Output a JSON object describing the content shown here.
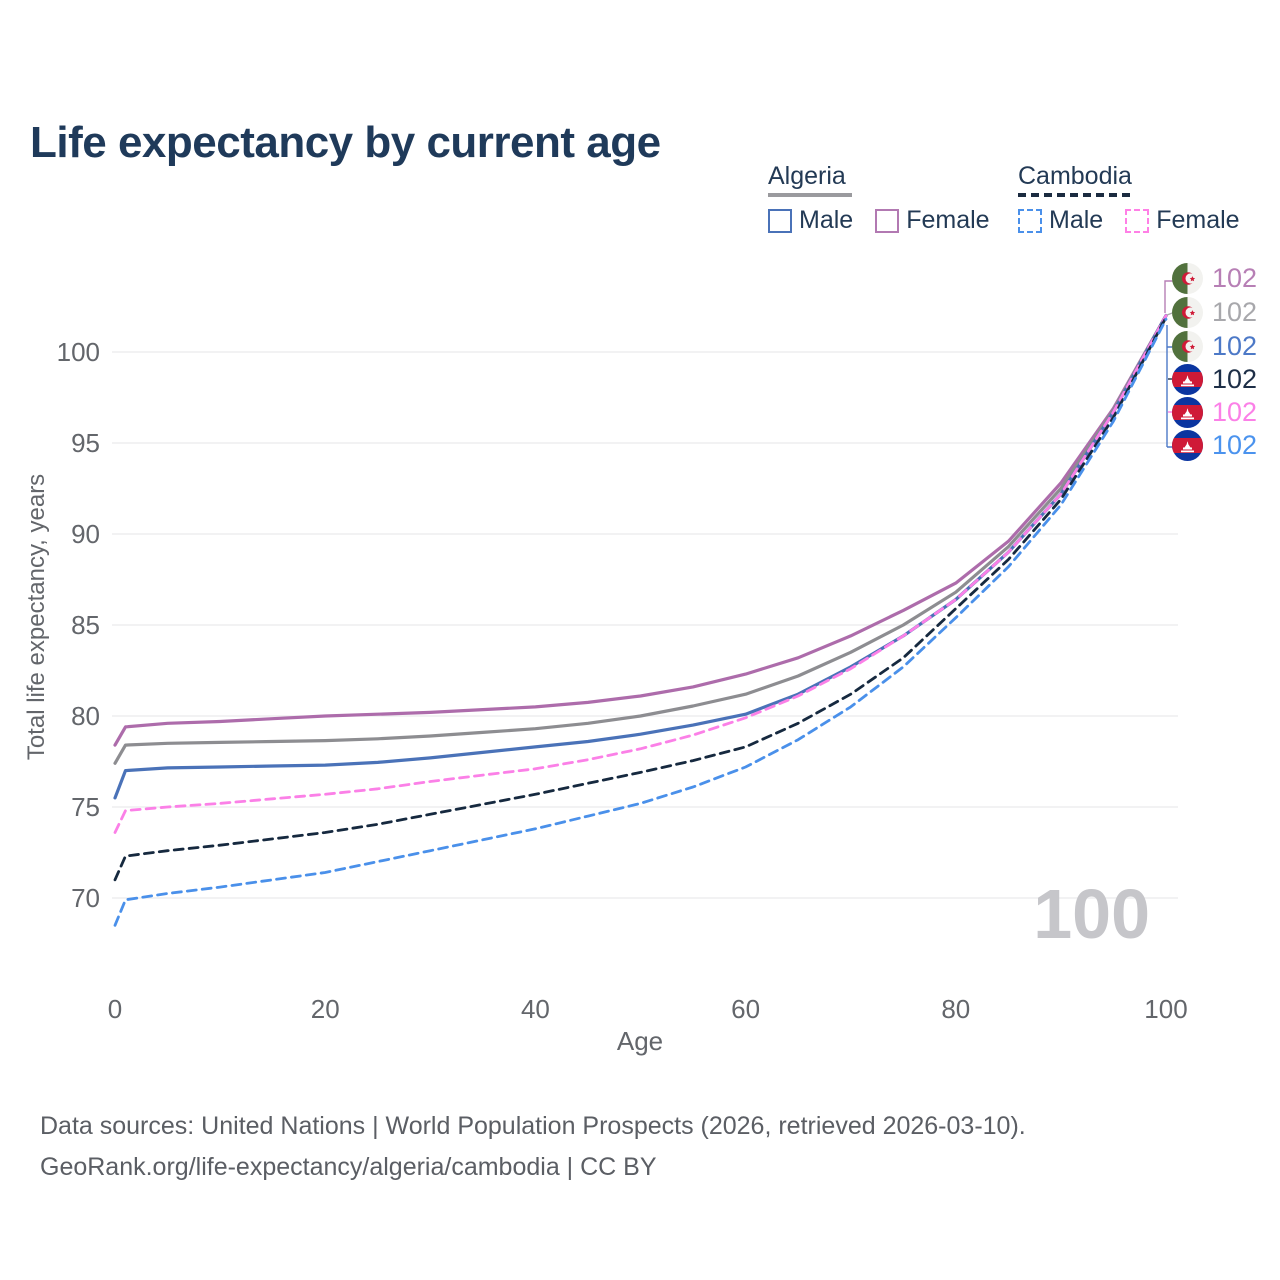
{
  "title": "Life expectancy by current age",
  "legend": {
    "groups": [
      {
        "country": "Algeria",
        "line_style": "solid",
        "underline_color": "#9a9a9e",
        "items": [
          {
            "label": "Male",
            "color": "#4a72b8",
            "dashed": false
          },
          {
            "label": "Female",
            "color": "#b279b2",
            "dashed": false
          }
        ]
      },
      {
        "country": "Cambodia",
        "line_style": "dashed",
        "underline_color": "#1b2b40",
        "items": [
          {
            "label": "Male",
            "color": "#4a90ea",
            "dashed": true
          },
          {
            "label": "Female",
            "color": "#ff80e6",
            "dashed": true
          }
        ]
      }
    ]
  },
  "end_labels": [
    {
      "flag": "algeria",
      "series": "Algeria Female",
      "value": "102",
      "color": "#b77fb5"
    },
    {
      "flag": "algeria",
      "series": "Algeria Both sexes",
      "value": "102",
      "color": "#a8a8ac"
    },
    {
      "flag": "algeria",
      "series": "Algeria Male",
      "value": "102",
      "color": "#4d79c7"
    },
    {
      "flag": "cambodia",
      "series": "Cambodia Both sexes",
      "value": "102",
      "color": "#1e2f47"
    },
    {
      "flag": "cambodia",
      "series": "Cambodia Female",
      "value": "102",
      "color": "#fb80e7"
    },
    {
      "flag": "cambodia",
      "series": "Cambodia Male",
      "value": "102",
      "color": "#4b93ee"
    }
  ],
  "watermark": "100",
  "footer": {
    "line1": "Data sources: United Nations | World Population Prospects (2026, retrieved 2026-03-10).",
    "line2": "GeoRank.org/life-expectancy/algeria/cambodia | CC BY"
  },
  "chart_data": {
    "type": "line",
    "title": "Life expectancy by current age",
    "xlabel": "Age",
    "ylabel": "Total life expectancy, years",
    "xlim": [
      0,
      100
    ],
    "ylim": [
      66.5,
      103.5
    ],
    "xticks": [
      0,
      20,
      40,
      60,
      80,
      100
    ],
    "yticks": [
      70,
      75,
      80,
      85,
      90,
      95,
      100
    ],
    "grid": "horizontal-only",
    "legend_position": "top-right",
    "x": [
      0,
      1,
      5,
      10,
      15,
      20,
      25,
      30,
      35,
      40,
      45,
      50,
      55,
      60,
      65,
      70,
      75,
      80,
      85,
      90,
      95,
      100
    ],
    "series": [
      {
        "name": "Algeria Female",
        "color": "#ad6cab",
        "dashed": false,
        "values": [
          78.4,
          79.4,
          79.6,
          79.7,
          79.85,
          80.0,
          80.1,
          80.2,
          80.35,
          80.5,
          80.75,
          81.1,
          81.6,
          82.3,
          83.2,
          84.4,
          85.8,
          87.3,
          89.6,
          92.8,
          96.9,
          102.0
        ]
      },
      {
        "name": "Algeria Both sexes",
        "color": "#8d8d91",
        "dashed": false,
        "values": [
          77.4,
          78.4,
          78.5,
          78.55,
          78.6,
          78.65,
          78.75,
          78.9,
          79.1,
          79.3,
          79.6,
          80.0,
          80.55,
          81.2,
          82.2,
          83.5,
          85.0,
          86.8,
          89.3,
          92.5,
          96.8,
          102.0
        ]
      },
      {
        "name": "Algeria Male",
        "color": "#4a72b8",
        "dashed": false,
        "values": [
          75.5,
          77.0,
          77.15,
          77.2,
          77.25,
          77.3,
          77.45,
          77.7,
          78.0,
          78.3,
          78.6,
          79.0,
          79.5,
          80.1,
          81.2,
          82.7,
          84.4,
          86.4,
          89.0,
          92.2,
          96.7,
          102.0
        ]
      },
      {
        "name": "Cambodia Female",
        "color": "#fb80e7",
        "dashed": true,
        "values": [
          73.6,
          74.8,
          75.0,
          75.2,
          75.45,
          75.7,
          76.0,
          76.4,
          76.75,
          77.1,
          77.6,
          78.2,
          78.95,
          79.9,
          81.1,
          82.6,
          84.4,
          86.4,
          89.0,
          92.2,
          96.7,
          102.0
        ]
      },
      {
        "name": "Cambodia Both sexes",
        "color": "#16293f",
        "dashed": true,
        "values": [
          71.0,
          72.3,
          72.6,
          72.9,
          73.25,
          73.6,
          74.05,
          74.6,
          75.15,
          75.7,
          76.3,
          76.9,
          77.55,
          78.3,
          79.6,
          81.2,
          83.2,
          85.9,
          88.6,
          91.9,
          96.4,
          101.9
        ]
      },
      {
        "name": "Cambodia Male",
        "color": "#4a90ea",
        "dashed": true,
        "values": [
          68.5,
          69.9,
          70.25,
          70.6,
          71.0,
          71.4,
          72.0,
          72.6,
          73.2,
          73.8,
          74.5,
          75.2,
          76.1,
          77.2,
          78.7,
          80.5,
          82.7,
          85.4,
          88.2,
          91.6,
          96.2,
          101.8
        ]
      }
    ]
  }
}
